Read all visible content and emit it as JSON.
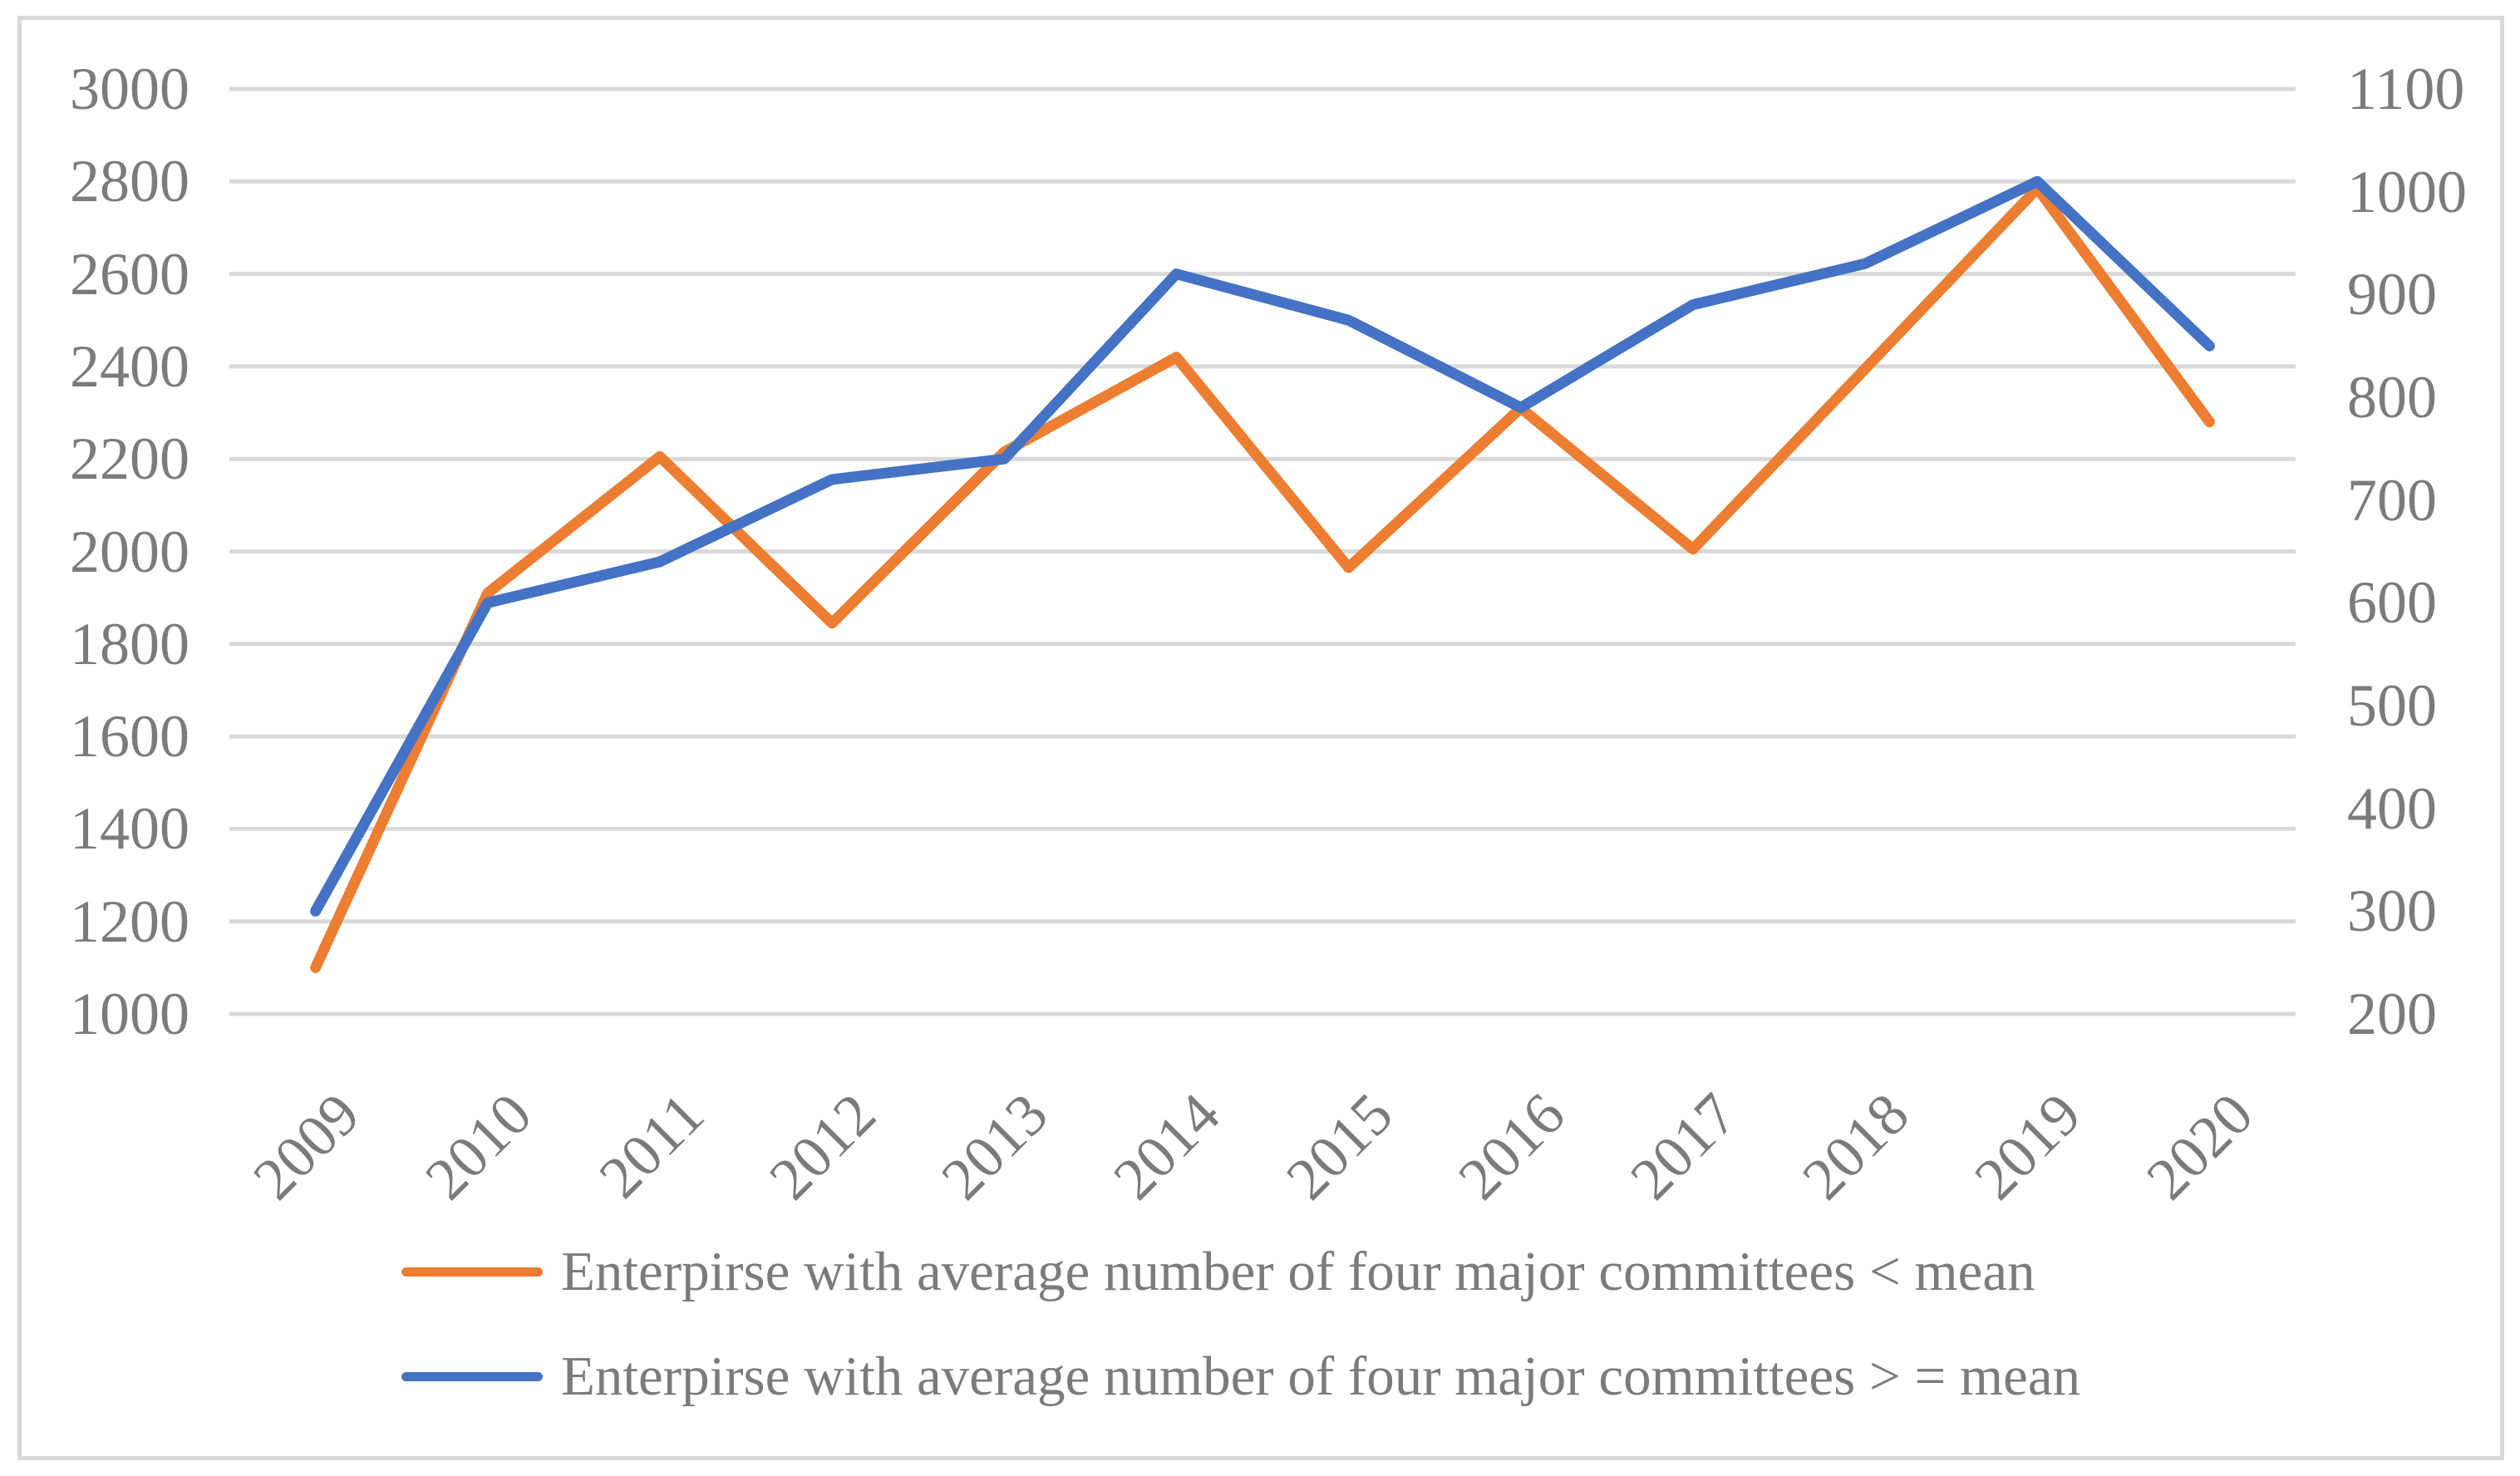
{
  "chart_data": {
    "type": "line",
    "title": "",
    "xlabel": "",
    "ylabel": "",
    "grid": true,
    "legend_position": "bottom",
    "categories": [
      "2009",
      "2010",
      "2011",
      "2012",
      "2013",
      "2014",
      "2015",
      "2016",
      "2017",
      "2018",
      "2019",
      "2020"
    ],
    "series": [
      {
        "name": "Enterpirse with average number of four major committees < mean",
        "axis": "left",
        "color": "#ED7D31",
        "values": [
          1100,
          1910,
          2205,
          1845,
          2215,
          2420,
          1965,
          2310,
          2005,
          2395,
          2785,
          2280
        ]
      },
      {
        "name": "Enterpirse with average number of four major committees > = mean",
        "axis": "right",
        "color": "#4472C4",
        "values": [
          300,
          600,
          640,
          720,
          740,
          920,
          875,
          790,
          890,
          930,
          1010,
          850
        ]
      }
    ],
    "left_axis": {
      "min": 1000,
      "max": 3000,
      "step": 200,
      "ticks": [
        "3000",
        "2800",
        "2600",
        "2400",
        "2200",
        "2000",
        "1800",
        "1600",
        "1400",
        "1200",
        "1000"
      ]
    },
    "right_axis": {
      "min": 200,
      "max": 1100,
      "step": 100,
      "ticks": [
        "1100",
        "1000",
        "900",
        "800",
        "700",
        "600",
        "500",
        "400",
        "300",
        "200"
      ]
    }
  },
  "styles": {
    "background": "#FFFFFF",
    "grid_color": "#D9D9D9",
    "border_color": "#D9D9D9",
    "axis_text_color": "#7B7B7B",
    "series1_color": "#ED7D31",
    "series2_color": "#4472C4"
  }
}
